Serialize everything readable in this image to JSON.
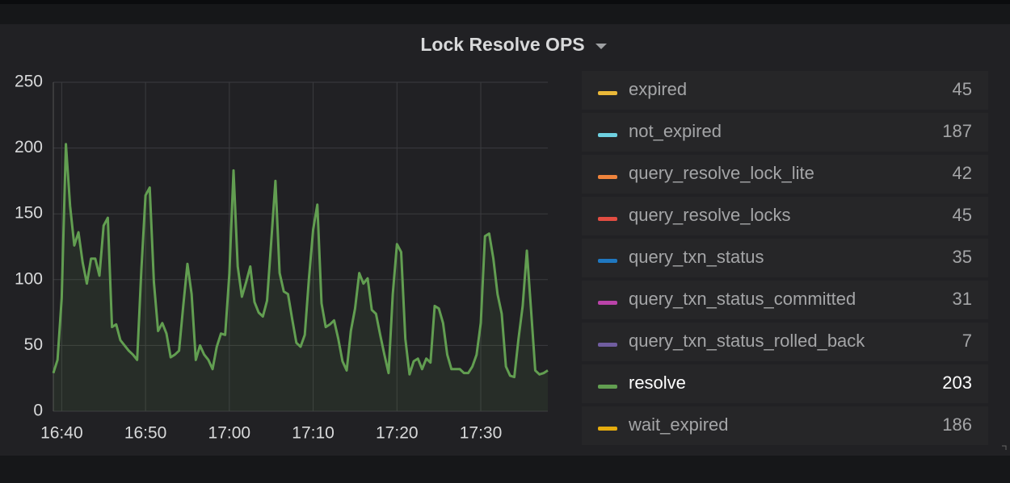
{
  "chart_data": {
    "type": "line",
    "title": "Lock Resolve OPS",
    "x": [
      999,
      999.5,
      1000,
      1000.5,
      1001,
      1001.5,
      1002,
      1002.5,
      1003,
      1003.5,
      1004,
      1004.5,
      1005,
      1005.5,
      1006,
      1006.5,
      1007,
      1007.5,
      1008,
      1008.5,
      1009,
      1009.5,
      1010,
      1010.5,
      1011,
      1011.5,
      1012,
      1012.5,
      1013,
      1013.5,
      1014,
      1014.5,
      1015,
      1015.5,
      1016,
      1016.5,
      1017,
      1017.5,
      1018,
      1018.5,
      1019,
      1019.5,
      1020,
      1020.5,
      1021,
      1021.5,
      1022,
      1022.5,
      1023,
      1023.5,
      1024,
      1024.5,
      1025,
      1025.5,
      1026,
      1026.5,
      1027,
      1027.5,
      1028,
      1028.5,
      1029,
      1029.5,
      1030,
      1030.5,
      1031,
      1031.5,
      1032,
      1032.5,
      1033,
      1033.5,
      1034,
      1034.5,
      1035,
      1035.5,
      1036,
      1036.5,
      1037,
      1037.5,
      1038,
      1038.5,
      1039,
      1039.5,
      1040,
      1040.5,
      1041,
      1041.5,
      1042,
      1042.5,
      1043,
      1043.5,
      1044,
      1044.5,
      1045,
      1045.5,
      1046,
      1046.5,
      1047,
      1047.5,
      1048,
      1048.5,
      1049,
      1049.5,
      1050,
      1050.5,
      1051,
      1051.5,
      1052,
      1052.5,
      1053,
      1053.5,
      1054,
      1054.5,
      1055,
      1055.5,
      1056,
      1056.5,
      1057,
      1057.5,
      1058
    ],
    "series": [
      {
        "name": "expired",
        "color": "#EAB839",
        "legend_value": 45,
        "hidden": true
      },
      {
        "name": "not_expired",
        "color": "#6ED0E0",
        "legend_value": 187,
        "hidden": true
      },
      {
        "name": "query_resolve_lock_lite",
        "color": "#EF843C",
        "legend_value": 42,
        "hidden": true
      },
      {
        "name": "query_resolve_locks",
        "color": "#E24D42",
        "legend_value": 45,
        "hidden": true
      },
      {
        "name": "query_txn_status",
        "color": "#1F78C1",
        "legend_value": 35,
        "hidden": true
      },
      {
        "name": "query_txn_status_committed",
        "color": "#BA43A9",
        "legend_value": 31,
        "hidden": true
      },
      {
        "name": "query_txn_status_rolled_back",
        "color": "#705DA0",
        "legend_value": 7,
        "hidden": true
      },
      {
        "name": "resolve",
        "color": "#629E51",
        "legend_value": 203,
        "hidden": false,
        "values": [
          29,
          39,
          86,
          203,
          156,
          126,
          136,
          113,
          97,
          116,
          116,
          103,
          141,
          147,
          64,
          66,
          54,
          50,
          46,
          43,
          39,
          107,
          164,
          170,
          98,
          61,
          67,
          59,
          41,
          43,
          46,
          80,
          112,
          89,
          39,
          50,
          43,
          39,
          32,
          49,
          59,
          58,
          104,
          183,
          110,
          87,
          98,
          110,
          83,
          75,
          72,
          84,
          129,
          175,
          105,
          91,
          89,
          70,
          52,
          49,
          58,
          101,
          138,
          157,
          82,
          64,
          66,
          69,
          55,
          38,
          31,
          61,
          78,
          105,
          97,
          101,
          77,
          74,
          58,
          43,
          29,
          89,
          127,
          121,
          55,
          28,
          38,
          40,
          32,
          40,
          37,
          80,
          78,
          67,
          43,
          32,
          32,
          32,
          29,
          29,
          34,
          43,
          67,
          133,
          135,
          116,
          89,
          74,
          34,
          27,
          26,
          55,
          80,
          122,
          77,
          31,
          28,
          29,
          31
        ]
      },
      {
        "name": "wait_expired",
        "color": "#E5AC0E",
        "legend_value": 186,
        "hidden": true
      }
    ],
    "xlim": [
      999,
      1058
    ],
    "xticks": [
      {
        "value": 1000,
        "label": "16:40"
      },
      {
        "value": 1010,
        "label": "16:50"
      },
      {
        "value": 1020,
        "label": "17:00"
      },
      {
        "value": 1030,
        "label": "17:10"
      },
      {
        "value": 1040,
        "label": "17:20"
      },
      {
        "value": 1050,
        "label": "17:30"
      }
    ],
    "ylim": [
      0,
      250
    ],
    "yticks": [
      0,
      50,
      100,
      150,
      200,
      250
    ],
    "grid": true
  }
}
